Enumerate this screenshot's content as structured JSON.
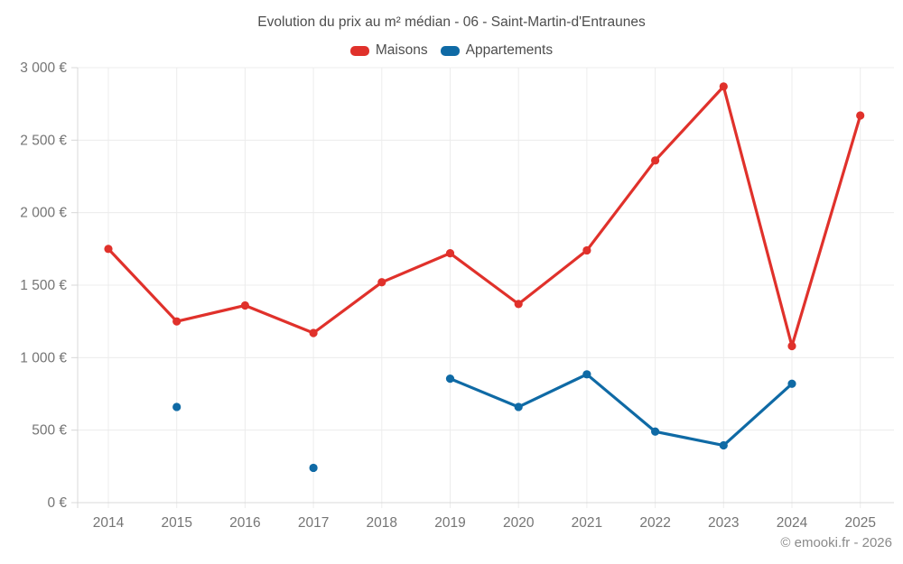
{
  "header": {
    "title": "Evolution du prix au m² médian - 06 - Saint-Martin-d'Entraunes"
  },
  "watermark": "© emooki.fr - 2026",
  "chart_data": {
    "type": "line",
    "title": "Evolution du prix au m² médian - 06 - Saint-Martin-d'Entraunes",
    "xlabel": "",
    "ylabel": "",
    "categories": [
      "2014",
      "2015",
      "2016",
      "2017",
      "2018",
      "2019",
      "2020",
      "2021",
      "2022",
      "2023",
      "2024",
      "2025"
    ],
    "series": [
      {
        "name": "Maisons",
        "color": "#e0312b",
        "values": [
          1750,
          1250,
          1360,
          1170,
          1520,
          1720,
          1370,
          1740,
          2360,
          2870,
          1080,
          2670
        ]
      },
      {
        "name": "Appartements",
        "color": "#0f6aa5",
        "values": [
          null,
          660,
          null,
          240,
          null,
          855,
          660,
          885,
          490,
          395,
          820,
          null
        ]
      }
    ],
    "ylim": [
      0,
      3000
    ],
    "ytick_step": 500,
    "ytick_labels": [
      "0 €",
      "500 €",
      "1 000 €",
      "1 500 €",
      "2 000 €",
      "2 500 €",
      "3 000 €"
    ],
    "grid": true,
    "legend_position": "top",
    "colors": {
      "grid": "#ececec",
      "axis": "#d8d8d8",
      "tick_text": "#757575",
      "title_text": "#4d4d4d",
      "watermark_text": "#8a8a8a"
    }
  }
}
